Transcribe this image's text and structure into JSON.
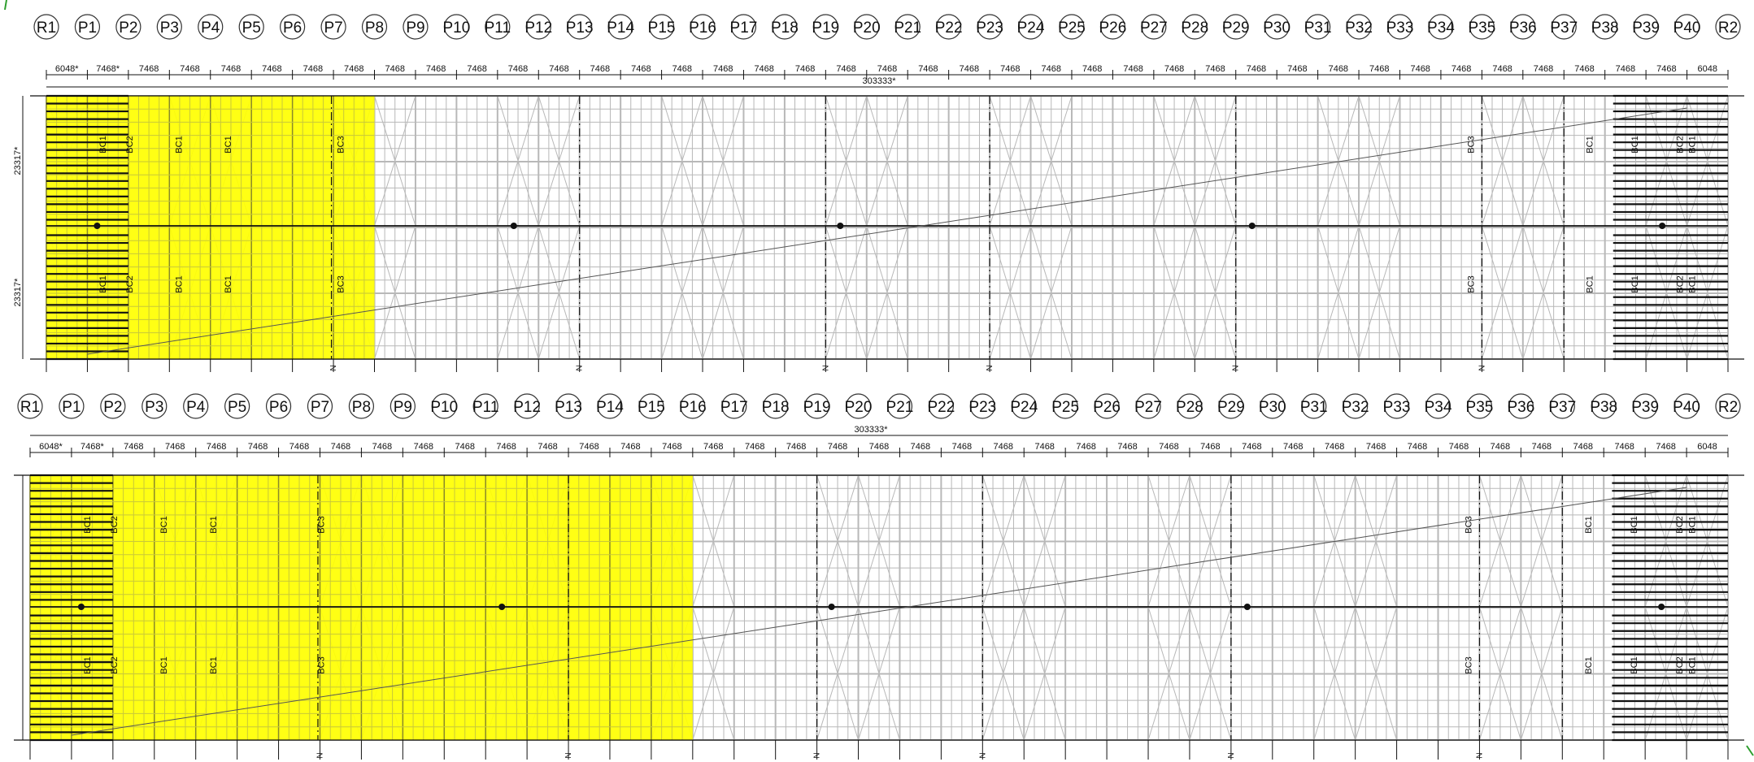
{
  "grid_labels": [
    "R1",
    "P1",
    "P2",
    "P3",
    "P4",
    "P5",
    "P6",
    "P7",
    "P8",
    "P9",
    "P10",
    "P11",
    "P12",
    "P13",
    "P14",
    "P15",
    "P16",
    "P17",
    "P18",
    "P19",
    "P20",
    "P21",
    "P22",
    "P23",
    "P24",
    "P25",
    "P26",
    "P27",
    "P28",
    "P29",
    "P30",
    "P31",
    "P32",
    "P33",
    "P34",
    "P35",
    "P36",
    "P37",
    "P38",
    "P39",
    "P40",
    "R2"
  ],
  "dimensions": [
    "6048*",
    "7468*",
    "7468",
    "7468",
    "7468",
    "7468",
    "7468",
    "7468",
    "7468",
    "7468",
    "7468",
    "7468",
    "7468",
    "7468",
    "7468",
    "7468",
    "7468",
    "7468",
    "7468",
    "7468",
    "7468",
    "7468",
    "7468",
    "7468",
    "7468",
    "7468",
    "7468",
    "7468",
    "7468",
    "7468",
    "7468",
    "7468",
    "7468",
    "7468",
    "7468",
    "7468",
    "7468",
    "7468",
    "7468",
    "7468",
    "6048"
  ],
  "overall_dimension": "303333*",
  "side_dimensions": {
    "upper": "23317*",
    "lower": "23317*"
  },
  "member_labels": {
    "left": [
      "BC1",
      "BC2",
      "BC1",
      "BC1",
      "BC3"
    ],
    "right": [
      "BC3",
      "BC1",
      "BC1",
      "BC2",
      "BC1"
    ]
  },
  "north_mark": "N",
  "panels": [
    {
      "name": "top-panel",
      "highlight_to": "P8"
    },
    {
      "name": "bottom-panel",
      "highlight_to": "P16"
    }
  ],
  "colors": {
    "highlight": "#ffff00",
    "highlight_line": "#8a8a2a",
    "grey_line": "#b8b8b8",
    "dark": "#111111",
    "accent_green": "#2e9e2e"
  }
}
